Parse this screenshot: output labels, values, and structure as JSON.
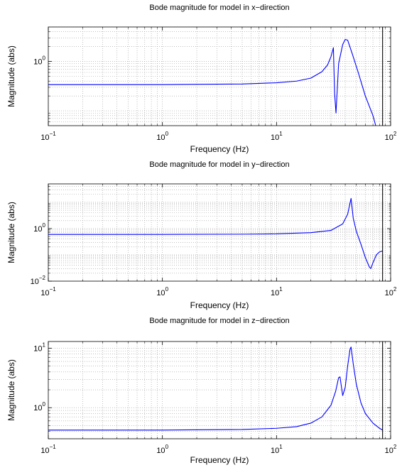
{
  "chart_data": [
    {
      "type": "line",
      "title": "Bode magnitude for model in x−direction",
      "xlabel": "Frequency  (Hz)",
      "ylabel": "Magnitude (abs)",
      "xscale": "log",
      "yscale": "log",
      "xlim": [
        0.1,
        100
      ],
      "ylim": [
        0.05,
        5
      ],
      "x_ticks": [
        {
          "value": 0.1,
          "base": "10",
          "exp": "−1"
        },
        {
          "value": 1,
          "base": "10",
          "exp": "0"
        },
        {
          "value": 10,
          "base": "10",
          "exp": "1"
        },
        {
          "value": 100,
          "base": "10",
          "exp": "2"
        }
      ],
      "y_ticks": [
        {
          "value": 1,
          "base": "10",
          "exp": "0"
        }
      ],
      "grid": true,
      "vline": 85,
      "line_color": "#0000ff",
      "series": [
        {
          "x": [
            0.1,
            1,
            5,
            10,
            15,
            20,
            25,
            28,
            30,
            31.5,
            32.3,
            33.2,
            35,
            38,
            40,
            42,
            46,
            52,
            60,
            70,
            74
          ],
          "y": [
            0.34,
            0.34,
            0.35,
            0.37,
            0.4,
            0.46,
            0.62,
            0.85,
            1.25,
            1.9,
            0.22,
            0.09,
            0.9,
            2.2,
            2.8,
            2.7,
            1.45,
            0.6,
            0.2,
            0.08,
            0.05
          ]
        }
      ]
    },
    {
      "type": "line",
      "title": "Bode magnitude for model in y−direction",
      "xlabel": "Frequency  (Hz)",
      "ylabel": "Magnitude (abs)",
      "xscale": "log",
      "yscale": "log",
      "xlim": [
        0.1,
        100
      ],
      "ylim": [
        0.01,
        50
      ],
      "x_ticks": [
        {
          "value": 0.1,
          "base": "10",
          "exp": "−1"
        },
        {
          "value": 1,
          "base": "10",
          "exp": "0"
        },
        {
          "value": 10,
          "base": "10",
          "exp": "1"
        },
        {
          "value": 100,
          "base": "10",
          "exp": "2"
        }
      ],
      "y_ticks": [
        {
          "value": 0.01,
          "base": "10",
          "exp": "−2"
        },
        {
          "value": 1,
          "base": "10",
          "exp": "0"
        }
      ],
      "grid": true,
      "vline": 85,
      "line_color": "#0000ff",
      "series": [
        {
          "x": [
            0.1,
            1,
            5,
            10,
            20,
            30,
            38,
            42,
            44,
            45,
            46,
            47,
            50,
            55,
            60,
            65,
            67,
            70,
            75,
            80,
            85
          ],
          "y": [
            0.6,
            0.6,
            0.61,
            0.63,
            0.7,
            0.85,
            1.5,
            3.5,
            9,
            14,
            6,
            2.5,
            0.8,
            0.25,
            0.08,
            0.035,
            0.03,
            0.05,
            0.1,
            0.13,
            0.14
          ]
        }
      ]
    },
    {
      "type": "line",
      "title": "Bode magnitude for model in z−direction",
      "xlabel": "Frequency  (Hz)",
      "ylabel": "Magnitude (abs)",
      "xscale": "log",
      "yscale": "log",
      "xlim": [
        0.1,
        100
      ],
      "ylim": [
        0.3,
        13
      ],
      "x_ticks": [
        {
          "value": 0.1,
          "base": "10",
          "exp": "−1"
        },
        {
          "value": 1,
          "base": "10",
          "exp": "0"
        },
        {
          "value": 10,
          "base": "10",
          "exp": "1"
        },
        {
          "value": 100,
          "base": "10",
          "exp": "2"
        }
      ],
      "y_ticks": [
        {
          "value": 1,
          "base": "10",
          "exp": "0"
        },
        {
          "value": 10,
          "base": "10",
          "exp": "1"
        }
      ],
      "grid": true,
      "vline": 85,
      "line_color": "#0000ff",
      "series": [
        {
          "x": [
            0.1,
            1,
            5,
            10,
            15,
            20,
            25,
            30,
            33,
            35,
            36,
            38,
            40,
            42,
            44,
            45,
            47,
            50,
            55,
            60,
            70,
            80,
            85
          ],
          "y": [
            0.42,
            0.42,
            0.43,
            0.45,
            0.48,
            0.55,
            0.7,
            1.1,
            1.9,
            3.2,
            3.3,
            1.6,
            2.2,
            5,
            9.5,
            10.5,
            5.5,
            2.5,
            1.2,
            0.8,
            0.55,
            0.45,
            0.42
          ]
        }
      ]
    }
  ]
}
